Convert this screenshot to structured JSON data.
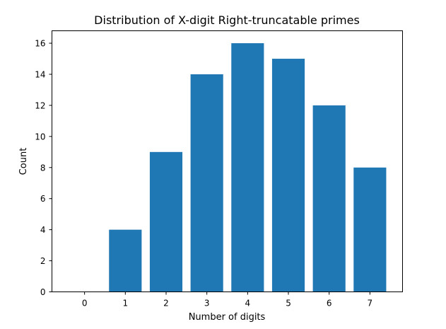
{
  "chart_data": {
    "type": "bar",
    "title": "Distribution of X-digit Right-truncatable primes",
    "xlabel": "Number of digits",
    "ylabel": "Count",
    "categories": [
      "0",
      "1",
      "2",
      "3",
      "4",
      "5",
      "6",
      "7"
    ],
    "values": [
      0,
      4,
      9,
      14,
      16,
      15,
      12,
      8
    ],
    "ylim": [
      0,
      16.8
    ],
    "yticks": [
      0,
      2,
      4,
      6,
      8,
      10,
      12,
      14,
      16
    ],
    "grid": false,
    "legend": "none",
    "bar_color": "#1f77b4"
  }
}
